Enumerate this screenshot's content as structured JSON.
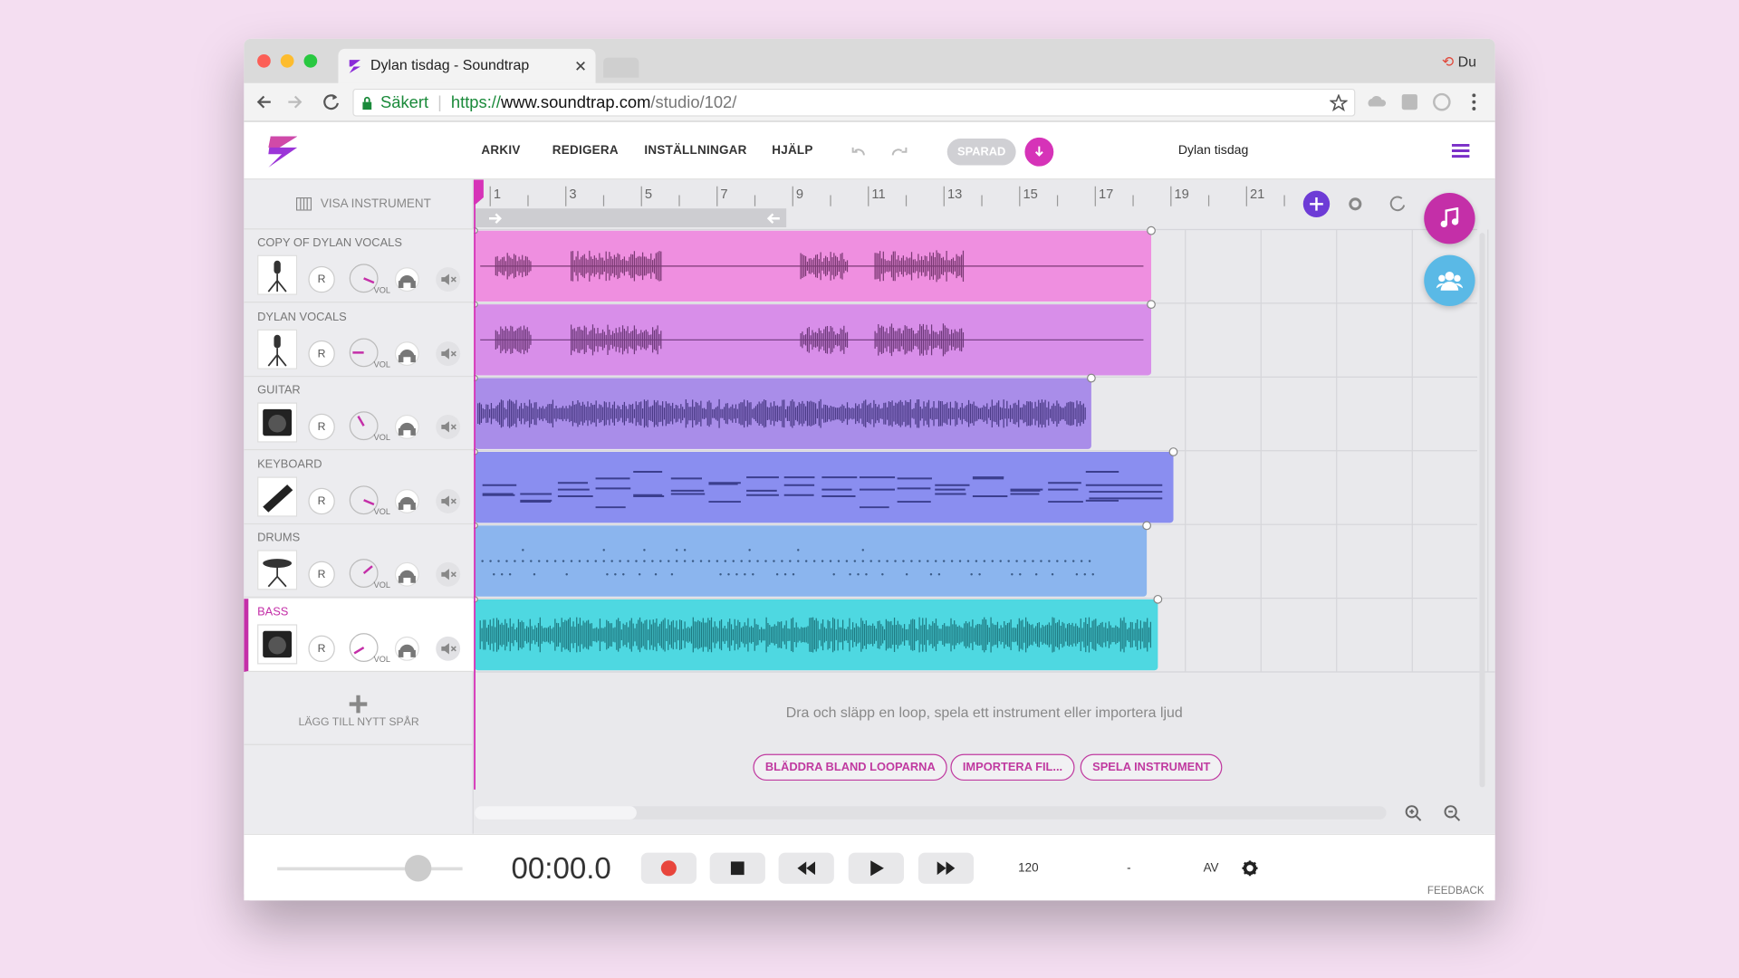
{
  "browser": {
    "tab_title": "Dylan tisdag - Soundtrap",
    "user": "Du",
    "secure_label": "Säkert",
    "url_scheme": "https://",
    "url_host": "www.soundtrap.com",
    "url_path": "/studio/102/"
  },
  "menu": {
    "items": [
      "ARKIV",
      "REDIGERA",
      "INSTÄLLNINGAR",
      "HJÄLP"
    ],
    "save_status": "SPARAD",
    "project_name": "Dylan tisdag"
  },
  "sidebar": {
    "show_instruments": "VISA INSTRUMENT",
    "add_track": "LÄGG TILL NYTT SPÅR"
  },
  "timeline": {
    "bar_numbers": [
      "1",
      "3",
      "5",
      "7",
      "9",
      "11",
      "13",
      "15",
      "17",
      "19",
      "21"
    ]
  },
  "track_controls": {
    "record": "R",
    "volume": "VOL"
  },
  "tracks": [
    {
      "name": "COPY OF DYLAN VOCALS"
    },
    {
      "name": "DYLAN VOCALS"
    },
    {
      "name": "GUITAR"
    },
    {
      "name": "KEYBOARD"
    },
    {
      "name": "DRUMS"
    },
    {
      "name": "BASS"
    }
  ],
  "empty_state": {
    "message": "Dra och släpp en loop, spela ett instrument eller importera ljud",
    "buttons": [
      "BLÄDDRA BLAND LOOPARNA",
      "IMPORTERA FIL...",
      "SPELA INSTRUMENT"
    ]
  },
  "transport": {
    "time": "00:00.0",
    "tempo": "120",
    "key": "-",
    "metronome": "AV",
    "feedback": "FEEDBACK"
  }
}
